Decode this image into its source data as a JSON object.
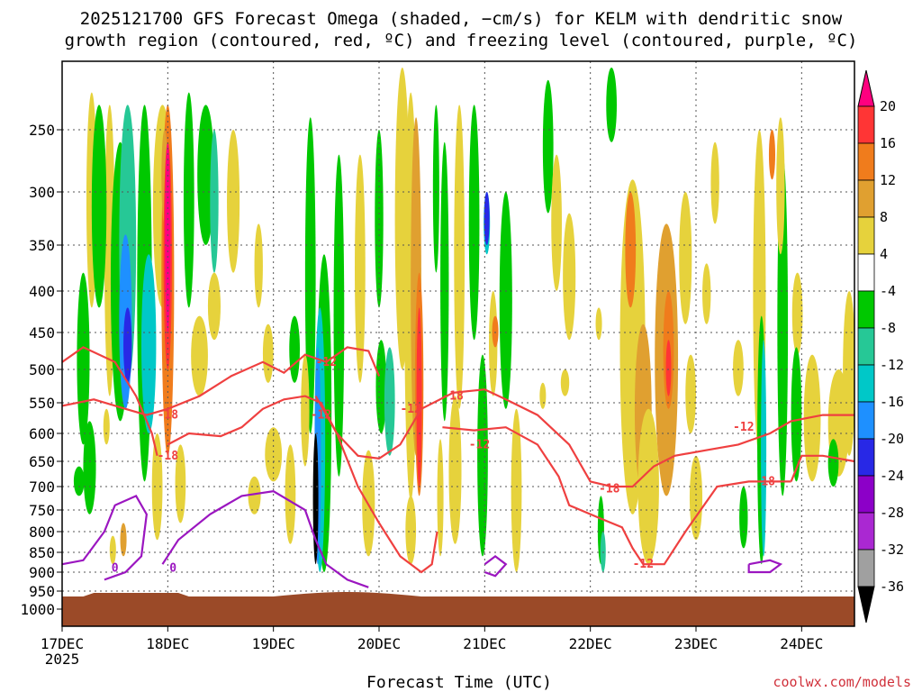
{
  "chart_data": {
    "type": "heatmap",
    "title_line1": "2025121700 GFS Forecast Omega (shaded, −cm/s) for KELM with dendritic snow",
    "title_line2": "growth region (contoured, red, ºC) and freezing level (contoured, purple, ºC)",
    "xlabel": "Forecast Time (UTC)",
    "ylabel": "",
    "credit": "coolwx.com/models",
    "x_ticks": [
      "17DEC",
      "18DEC",
      "19DEC",
      "20DEC",
      "21DEC",
      "22DEC",
      "23DEC",
      "24DEC"
    ],
    "x_year_label": "2025",
    "x_range_days": [
      0,
      7.5
    ],
    "y_ticks": [
      250,
      300,
      350,
      400,
      450,
      500,
      550,
      600,
      650,
      700,
      750,
      800,
      850,
      900,
      950,
      1000
    ],
    "y_range_hpa": [
      200,
      1020
    ],
    "terrain_pressure_hpa": 965,
    "colorbar": {
      "labels": [
        20,
        16,
        12,
        8,
        4,
        -4,
        -8,
        -12,
        -16,
        -20,
        -24,
        -28,
        -32,
        -36
      ],
      "colors": [
        "#ff007f",
        "#ff3535",
        "#f07c1c",
        "#e0a030",
        "#e6d23c",
        "#ffffff",
        "#00c800",
        "#26c896",
        "#00c8c8",
        "#1e90ff",
        "#2828e6",
        "#8c00c8",
        "#aa28d2",
        "#a0a0a0",
        "#000000"
      ]
    },
    "contour_labels_red": [
      "-18",
      "-18",
      "-12",
      "-12",
      "-18",
      "-12",
      "-18",
      "-12",
      "-12",
      "-18",
      "-12"
    ],
    "contour_labels_purple": [
      "0",
      "0"
    ],
    "colors": {
      "terrain": "#9b4a28",
      "red_contour": "#ef4040",
      "purple_contour": "#9b16c0"
    }
  }
}
